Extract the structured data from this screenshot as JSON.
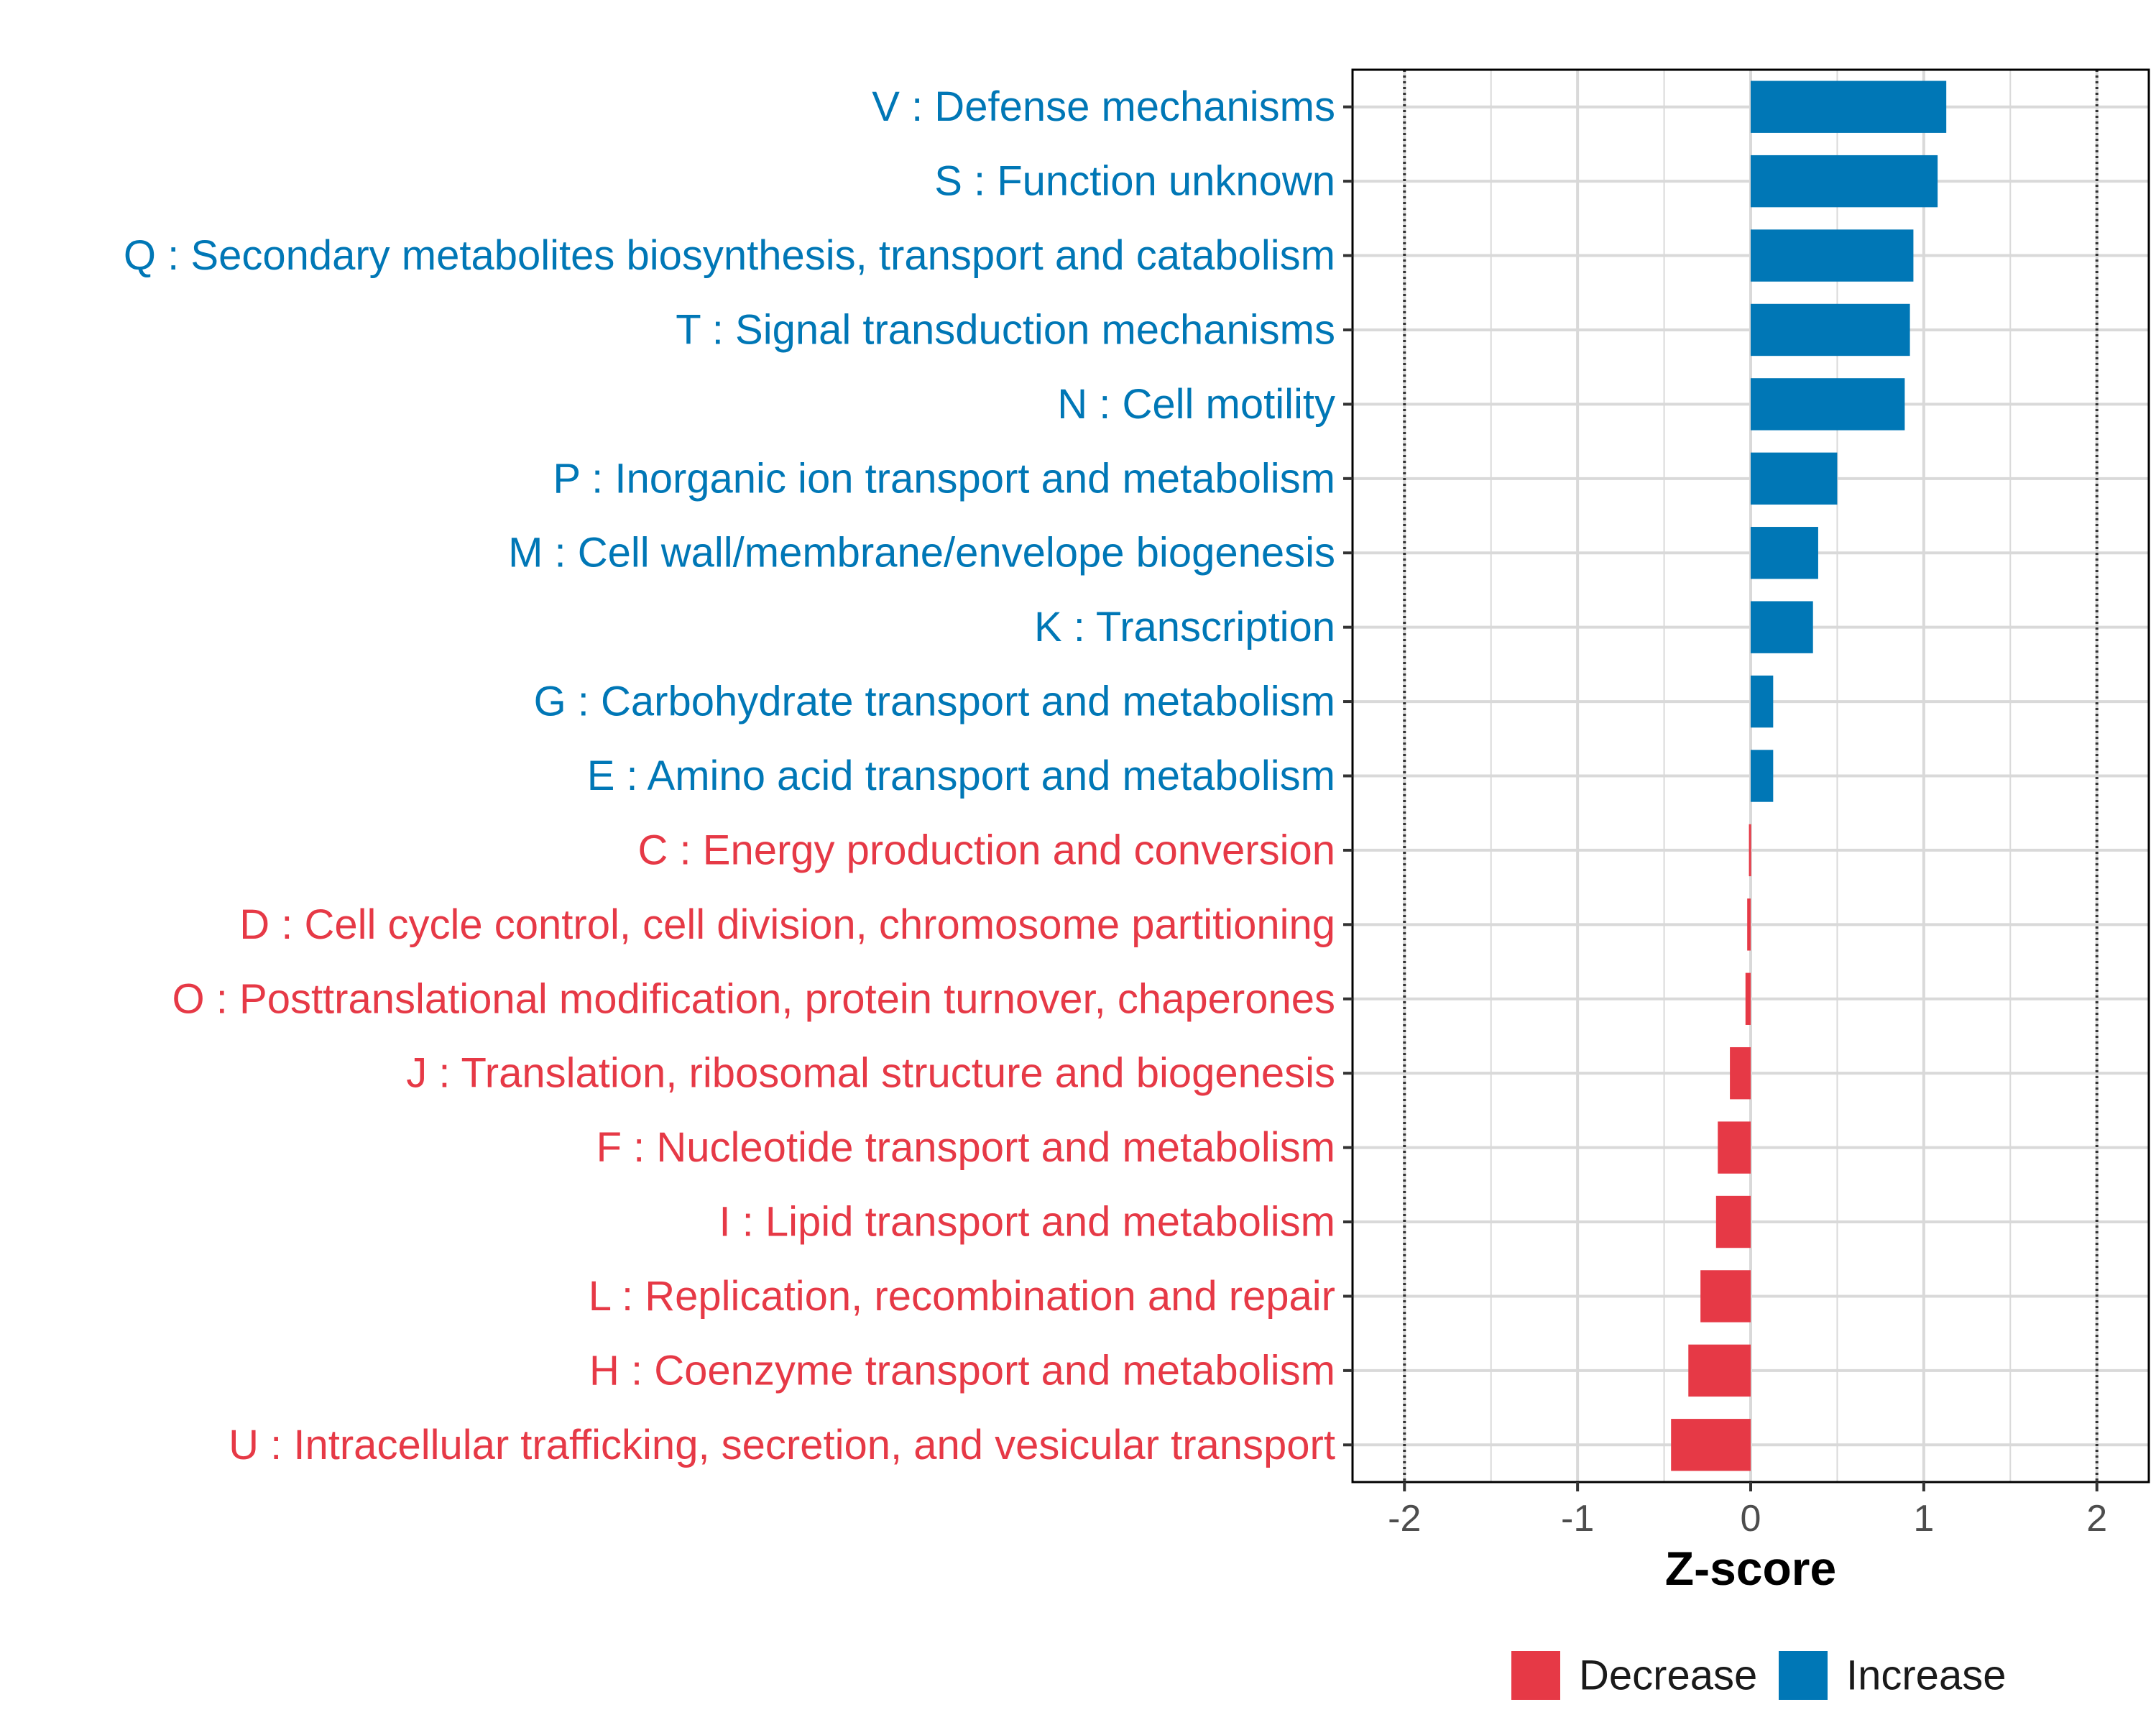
{
  "chart_data": {
    "type": "bar",
    "orientation": "horizontal",
    "xlabel": "Z-score",
    "ylabel": "",
    "xlim": [
      -2.3,
      2.3
    ],
    "xticks": [
      -2,
      -1,
      0,
      1,
      2
    ],
    "xtick_labels": [
      "-2",
      "-1",
      "0",
      "1",
      "2"
    ],
    "reference_lines": [
      -2,
      2
    ],
    "grid": true,
    "legend_position": "bottom",
    "colors": {
      "Decrease": "#E63946",
      "Increase": "#0077B6"
    },
    "series": [
      {
        "name": "Decrease",
        "color": "#E63946"
      },
      {
        "name": "Increase",
        "color": "#0077B6"
      }
    ],
    "categories": [
      "V : Defense mechanisms",
      "S : Function unknown",
      "Q : Secondary metabolites biosynthesis, transport and catabolism",
      "T : Signal transduction mechanisms",
      "N : Cell motility",
      "P : Inorganic ion transport and metabolism",
      "M : Cell wall/membrane/envelope biogenesis",
      "K : Transcription",
      "G : Carbohydrate transport and metabolism",
      "E : Amino acid transport and metabolism",
      "C : Energy production and conversion",
      "D : Cell cycle control, cell division, chromosome partitioning",
      "O : Posttranslational modification, protein turnover, chaperones",
      "J : Translation, ribosomal structure and biogenesis",
      "F : Nucleotide transport and metabolism",
      "I : Lipid transport and metabolism",
      "L : Replication, recombination and repair",
      "H : Coenzyme transport and metabolism",
      "U : Intracellular trafficking, secretion, and vesicular transport"
    ],
    "values": [
      1.13,
      1.08,
      0.94,
      0.92,
      0.89,
      0.5,
      0.39,
      0.36,
      0.13,
      0.13,
      -0.01,
      -0.02,
      -0.03,
      -0.12,
      -0.19,
      -0.2,
      -0.29,
      -0.36,
      -0.46
    ],
    "groups": [
      "Increase",
      "Increase",
      "Increase",
      "Increase",
      "Increase",
      "Increase",
      "Increase",
      "Increase",
      "Increase",
      "Increase",
      "Decrease",
      "Decrease",
      "Decrease",
      "Decrease",
      "Decrease",
      "Decrease",
      "Decrease",
      "Decrease",
      "Decrease"
    ]
  }
}
